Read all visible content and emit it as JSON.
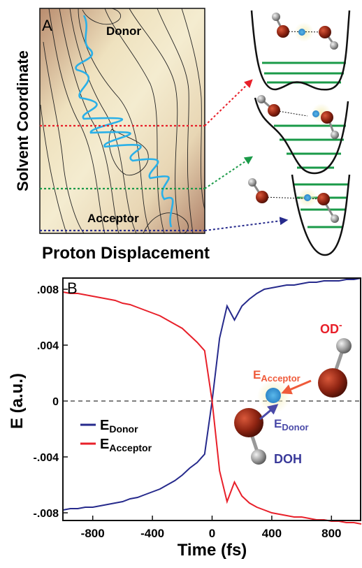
{
  "panel_a": {
    "label": "A",
    "donor": "Donor",
    "acceptor": "Acceptor",
    "y_label": "Solvent Coordinate",
    "x_label": "Proton Displacement"
  },
  "chart_data": {
    "type": "line",
    "panel_label": "B",
    "x_label": "Time (fs)",
    "y_label": "E (a.u.)",
    "x": [
      -1000,
      -950,
      -900,
      -850,
      -800,
      -750,
      -700,
      -650,
      -600,
      -550,
      -500,
      -450,
      -400,
      -350,
      -300,
      -250,
      -200,
      -150,
      -100,
      -50,
      0,
      50,
      100,
      150,
      200,
      250,
      300,
      350,
      400,
      450,
      500,
      550,
      600,
      650,
      700,
      750,
      800,
      850,
      900,
      950,
      1000
    ],
    "series": [
      {
        "name": "E",
        "name_subscript": "Donor",
        "color": "#262a8c",
        "values": [
          -0.0078,
          -0.0077,
          -0.0077,
          -0.0076,
          -0.0076,
          -0.0075,
          -0.0074,
          -0.0073,
          -0.0072,
          -0.007,
          -0.0069,
          -0.0067,
          -0.0065,
          -0.0063,
          -0.006,
          -0.0057,
          -0.0053,
          -0.0048,
          -0.0044,
          -0.0038,
          0,
          0.0045,
          0.0068,
          0.0058,
          0.0068,
          0.0073,
          0.0077,
          0.008,
          0.0081,
          0.0082,
          0.0083,
          0.0083,
          0.0084,
          0.0085,
          0.0085,
          0.0086,
          0.0086,
          0.0086,
          0.0087,
          0.0087,
          0.0088
        ]
      },
      {
        "name": "E",
        "name_subscript": "Acceptor",
        "color": "#e8202a",
        "values": [
          0.0078,
          0.0077,
          0.0077,
          0.0076,
          0.0075,
          0.0074,
          0.0073,
          0.0072,
          0.007,
          0.0069,
          0.0067,
          0.0065,
          0.0063,
          0.0061,
          0.0058,
          0.0055,
          0.0052,
          0.0047,
          0.0042,
          0.0036,
          0,
          -0.005,
          -0.0072,
          -0.0058,
          -0.0068,
          -0.0073,
          -0.0076,
          -0.0078,
          -0.008,
          -0.0081,
          -0.0082,
          -0.0083,
          -0.0083,
          -0.0084,
          -0.0085,
          -0.0085,
          -0.0086,
          -0.0086,
          -0.0087,
          -0.0087,
          -0.0088
        ]
      }
    ],
    "xlim": [
      -1000,
      1000
    ],
    "ylim": [
      -0.00855,
      0.0088
    ],
    "xticks": [
      -800,
      -400,
      0,
      400,
      800
    ],
    "yticks": [
      {
        "value": -0.008,
        "label": "-.008"
      },
      {
        "value": -0.004,
        "label": "-.004"
      },
      0,
      {
        "value": 0.004,
        "label": ".004"
      },
      {
        "value": 0.008,
        "label": ".008"
      }
    ],
    "zero_line": true,
    "legend": "left",
    "annotations": {
      "acceptor_ion": "OD",
      "acceptor_charge": "-",
      "e_acceptor": "E",
      "e_acceptor_sub": "Acceptor",
      "e_donor": "E",
      "e_donor_sub": "Donor",
      "donor_molecule": "DOH"
    }
  }
}
